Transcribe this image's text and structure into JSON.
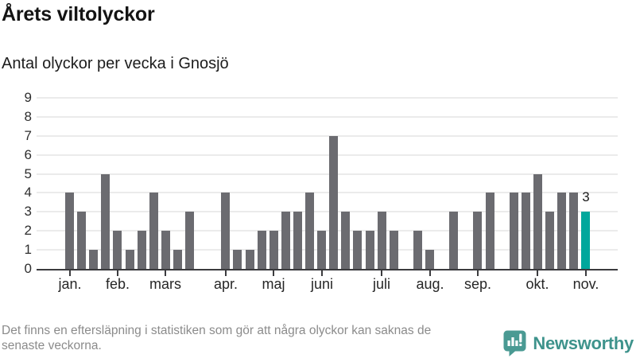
{
  "header": {
    "title": "Årets viltolyckor",
    "subtitle": "Antal olyckor per vecka i Gnosjö"
  },
  "chart_data": {
    "type": "bar",
    "title": "Årets viltolyckor",
    "subtitle": "Antal olyckor per vecka i Gnosjö",
    "xlabel": "",
    "ylabel": "Antal olyckor per vecka",
    "ylim": [
      0,
      9
    ],
    "yticks": [
      0,
      1,
      2,
      3,
      4,
      5,
      6,
      7,
      8,
      9
    ],
    "grid": "horizontal",
    "x_unit": "vecka",
    "weekly_values": [
      4,
      3,
      1,
      5,
      2,
      1,
      2,
      4,
      2,
      1,
      3,
      0,
      0,
      4,
      1,
      1,
      2,
      2,
      3,
      3,
      4,
      2,
      7,
      3,
      2,
      2,
      3,
      2,
      0,
      2,
      1,
      0,
      3,
      0,
      3,
      4,
      0,
      4,
      4,
      5,
      3,
      4,
      4,
      3
    ],
    "months": [
      {
        "label": "jan.",
        "week": 1
      },
      {
        "label": "feb.",
        "week": 5
      },
      {
        "label": "mars",
        "week": 9
      },
      {
        "label": "apr.",
        "week": 14
      },
      {
        "label": "maj",
        "week": 18
      },
      {
        "label": "juni",
        "week": 22
      },
      {
        "label": "juli",
        "week": 27
      },
      {
        "label": "aug.",
        "week": 31
      },
      {
        "label": "sep.",
        "week": 35
      },
      {
        "label": "okt.",
        "week": 40
      },
      {
        "label": "nov.",
        "week": 44
      }
    ],
    "annotation": {
      "text": "3",
      "week": 44
    },
    "highlight_week": 44,
    "bar_color": "#6b6b70",
    "highlight_color": "#00a79c"
  },
  "footer": {
    "note": "Det finns en eftersläpning i statistiken som gör att några olyckor kan saknas de\nsenaste veckorna.",
    "brand": "Newsworthy"
  },
  "colors": {
    "background": "#ffffff",
    "title_text": "#141414",
    "axis_line": "#3b3b3e",
    "gridline": "#ebebeb",
    "footer_text": "#8b8b8b",
    "brand_teal": "#3e938c",
    "badge_teal": "#4a9a93"
  }
}
